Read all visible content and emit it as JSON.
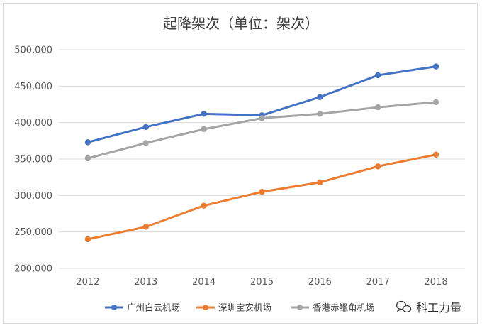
{
  "chart_data": {
    "type": "line",
    "title": "起降架次（单位：架次）",
    "categories": [
      "2012",
      "2013",
      "2014",
      "2015",
      "2016",
      "2017",
      "2018"
    ],
    "ylim": [
      200000,
      500000
    ],
    "yticks": [
      200000,
      250000,
      300000,
      350000,
      400000,
      450000,
      500000
    ],
    "ytick_labels": [
      "200,000",
      "250,000",
      "300,000",
      "350,000",
      "400,000",
      "450,000",
      "500,000"
    ],
    "grid": true,
    "legend_position": "bottom",
    "series": [
      {
        "name": "广州白云机场",
        "color": "#4472C4",
        "values": [
          373000,
          394000,
          412000,
          410000,
          435000,
          465000,
          477000
        ]
      },
      {
        "name": "深圳宝安机场",
        "color": "#ED7D31",
        "values": [
          240000,
          257000,
          286000,
          305000,
          318000,
          340000,
          356000
        ]
      },
      {
        "name": "香港赤鱲角机场",
        "color": "#A5A5A5",
        "values": [
          351000,
          372000,
          391000,
          406000,
          412000,
          421000,
          428000
        ]
      }
    ]
  },
  "watermark": {
    "text": "科工力量",
    "icon": "wechat-icon"
  }
}
